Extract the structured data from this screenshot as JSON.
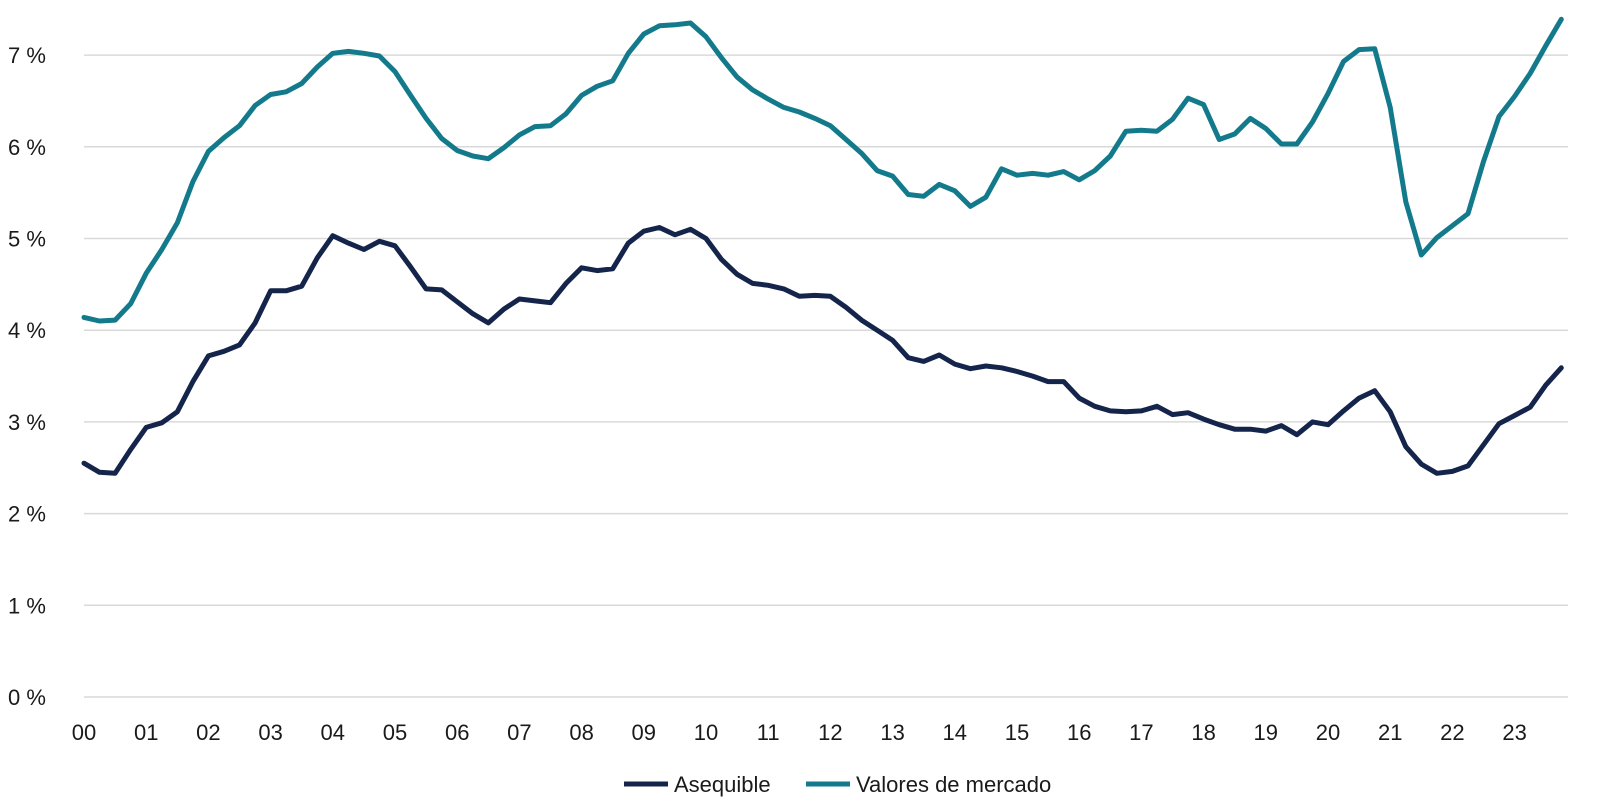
{
  "chart_data": {
    "type": "line",
    "title": "",
    "xlabel": "",
    "ylabel": "",
    "x_start_year": 2000,
    "x_step_years": 0.25,
    "xlim": [
      2000,
      2023.75
    ],
    "ylim": [
      0,
      7
    ],
    "y_ticks": [
      "0 %",
      "1 %",
      "2 %",
      "3 %",
      "4 %",
      "5 %",
      "6 %",
      "7 %"
    ],
    "x_ticks": [
      "00",
      "01",
      "02",
      "03",
      "04",
      "05",
      "06",
      "07",
      "08",
      "09",
      "10",
      "11",
      "12",
      "13",
      "14",
      "15",
      "16",
      "17",
      "18",
      "19",
      "20",
      "21",
      "22",
      "23"
    ],
    "grid": "horizontal",
    "legend_position": "bottom-center",
    "series": [
      {
        "name": "Asequible",
        "color": "#14244a",
        "values": [
          2.55,
          2.45,
          2.44,
          2.7,
          2.94,
          2.99,
          3.11,
          3.44,
          3.72,
          3.77,
          3.84,
          4.08,
          4.43,
          4.43,
          4.48,
          4.79,
          5.03,
          4.95,
          4.88,
          4.97,
          4.92,
          4.69,
          4.45,
          4.44,
          4.31,
          4.18,
          4.08,
          4.23,
          4.34,
          4.32,
          4.3,
          4.51,
          4.68,
          4.65,
          4.67,
          4.95,
          5.08,
          5.12,
          5.04,
          5.1,
          5.0,
          4.77,
          4.61,
          4.51,
          4.49,
          4.45,
          4.37,
          4.38,
          4.37,
          4.25,
          4.11,
          4.0,
          3.89,
          3.7,
          3.66,
          3.73,
          3.63,
          3.58,
          3.61,
          3.59,
          3.55,
          3.5,
          3.44,
          3.44,
          3.26,
          3.17,
          3.12,
          3.11,
          3.12,
          3.17,
          3.08,
          3.1,
          3.03,
          2.97,
          2.92,
          2.92,
          2.9,
          2.96,
          2.86,
          3.0,
          2.97,
          3.12,
          3.26,
          3.34,
          3.11,
          2.73,
          2.54,
          2.44,
          2.46,
          2.52,
          2.75,
          2.98,
          3.07,
          3.16,
          3.4,
          3.59
        ]
      },
      {
        "name": "Valores de mercado",
        "color": "#137a8c",
        "values": [
          4.14,
          4.1,
          4.11,
          4.29,
          4.62,
          4.88,
          5.17,
          5.62,
          5.95,
          6.1,
          6.23,
          6.45,
          6.57,
          6.6,
          6.69,
          6.87,
          7.02,
          7.04,
          7.02,
          6.99,
          6.82,
          6.56,
          6.31,
          6.09,
          5.96,
          5.9,
          5.87,
          5.99,
          6.13,
          6.22,
          6.23,
          6.36,
          6.56,
          6.66,
          6.72,
          7.02,
          7.23,
          7.32,
          7.33,
          7.35,
          7.2,
          6.97,
          6.76,
          6.62,
          6.52,
          6.43,
          6.38,
          6.31,
          6.23,
          6.08,
          5.93,
          5.74,
          5.68,
          5.48,
          5.46,
          5.59,
          5.52,
          5.35,
          5.45,
          5.76,
          5.69,
          5.71,
          5.69,
          5.73,
          5.64,
          5.74,
          5.9,
          6.17,
          6.18,
          6.17,
          6.3,
          6.53,
          6.46,
          6.08,
          6.14,
          6.31,
          6.2,
          6.03,
          6.03,
          6.27,
          6.58,
          6.93,
          7.06,
          7.07,
          6.43,
          5.4,
          4.82,
          5.01,
          5.14,
          5.27,
          5.84,
          6.33,
          6.55,
          6.8,
          7.1,
          7.39
        ]
      }
    ]
  }
}
